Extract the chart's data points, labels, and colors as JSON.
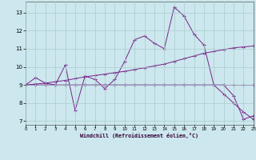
{
  "background_color": "#cce8ee",
  "grid_color": "#aacccc",
  "line_color": "#772288",
  "xlabel": "Windchill (Refroidissement éolien,°C)",
  "xlim": [
    0,
    23
  ],
  "ylim": [
    6.8,
    13.6
  ],
  "yticks": [
    7,
    8,
    9,
    10,
    11,
    12,
    13
  ],
  "xticks": [
    0,
    1,
    2,
    3,
    4,
    5,
    6,
    7,
    8,
    9,
    10,
    11,
    12,
    13,
    14,
    15,
    16,
    17,
    18,
    19,
    20,
    21,
    22,
    23
  ],
  "lines": [
    {
      "x": [
        0,
        1,
        2,
        3,
        4,
        5,
        6,
        7,
        8,
        9,
        10,
        11,
        12,
        13,
        14,
        15,
        16,
        17,
        18,
        19,
        20,
        21,
        22,
        23
      ],
      "y": [
        9.0,
        9.4,
        9.1,
        9.0,
        10.1,
        7.6,
        9.5,
        9.3,
        8.8,
        9.3,
        10.3,
        11.5,
        11.7,
        11.3,
        11.0,
        13.3,
        12.8,
        11.8,
        11.2,
        9.0,
        9.0,
        8.4,
        7.1,
        7.3
      ]
    },
    {
      "x": [
        0,
        1,
        2,
        3,
        4,
        5,
        6,
        7,
        8,
        9,
        10,
        11,
        12,
        13,
        14,
        15,
        16,
        17,
        18,
        19,
        20,
        21,
        22,
        23
      ],
      "y": [
        9.0,
        9.05,
        9.1,
        9.18,
        9.25,
        9.35,
        9.45,
        9.52,
        9.6,
        9.68,
        9.75,
        9.85,
        9.95,
        10.05,
        10.15,
        10.3,
        10.45,
        10.6,
        10.75,
        10.85,
        10.95,
        11.05,
        11.1,
        11.15
      ]
    },
    {
      "x": [
        0,
        1,
        2,
        3,
        4,
        5,
        6,
        7,
        8,
        9,
        10,
        11,
        12,
        13,
        14,
        15,
        16,
        17,
        18,
        19,
        20,
        21,
        22,
        23
      ],
      "y": [
        9.0,
        9.0,
        9.0,
        9.0,
        9.0,
        9.0,
        9.0,
        9.0,
        9.0,
        9.0,
        9.0,
        9.0,
        9.0,
        9.0,
        9.0,
        9.0,
        9.0,
        9.0,
        9.0,
        9.0,
        9.0,
        9.0,
        9.0,
        9.0
      ]
    },
    {
      "x": [
        0,
        1,
        2,
        3,
        4,
        5,
        6,
        7,
        8,
        9,
        10,
        11,
        12,
        13,
        14,
        15,
        16,
        17,
        18,
        19,
        20,
        21,
        22,
        23
      ],
      "y": [
        9.0,
        9.0,
        9.0,
        9.0,
        9.0,
        9.0,
        9.0,
        9.0,
        9.0,
        9.0,
        9.0,
        9.0,
        9.0,
        9.0,
        9.0,
        9.0,
        9.0,
        9.0,
        9.0,
        9.0,
        8.5,
        8.0,
        7.5,
        7.1
      ]
    }
  ]
}
